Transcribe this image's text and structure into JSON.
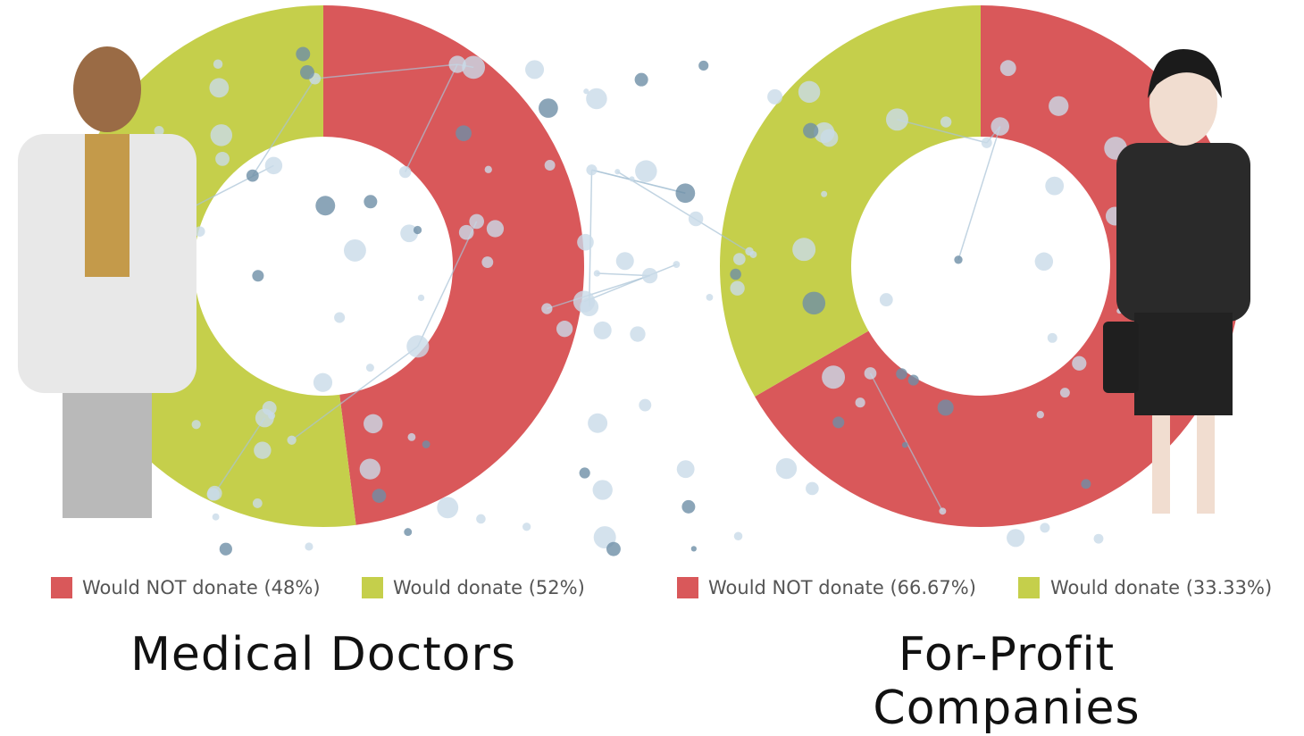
{
  "chart_data": [
    {
      "type": "donut",
      "title": "Medical Doctors",
      "categories": [
        "Would NOT donate (48%)",
        "Would donate (52%)"
      ],
      "values": [
        48,
        52
      ],
      "colors": [
        "#d9585a",
        "#c5cf4b"
      ]
    },
    {
      "type": "donut",
      "title": "For-Profit Companies",
      "categories": [
        "Would NOT donate (66.67%)",
        "Would donate (33.33%)"
      ],
      "values": [
        66.67,
        33.33
      ],
      "colors": [
        "#d9585a",
        "#c5cf4b"
      ]
    }
  ]
}
